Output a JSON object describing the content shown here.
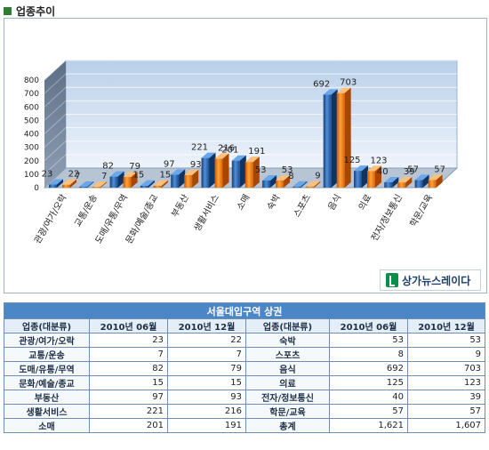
{
  "section_title": "업종추이",
  "logo_text": "상가뉴스레이다",
  "chart_data": {
    "type": "bar",
    "title": "",
    "xlabel": "",
    "ylabel": "",
    "ylim": [
      0,
      800
    ],
    "yticks": [
      0,
      100,
      200,
      300,
      400,
      500,
      600,
      700,
      800
    ],
    "grid": true,
    "legend": "none",
    "categories": [
      "관광/여가/오락",
      "교통/운송",
      "도매/유통/무역",
      "문화/예술/종교",
      "부동산",
      "생활서비스",
      "소매",
      "숙박",
      "스포츠",
      "음식",
      "의료",
      "전자/정보통신",
      "학문/교육"
    ],
    "series": [
      {
        "values": [
          23,
          7,
          82,
          15,
          97,
          221,
          201,
          53,
          8,
          692,
          125,
          40,
          57
        ],
        "color": "#1f5fa8"
      },
      {
        "values": [
          22,
          7,
          79,
          15,
          93,
          216,
          191,
          53,
          9,
          703,
          123,
          39,
          57
        ],
        "color": "#f07a10"
      }
    ]
  },
  "table": {
    "caption": "서울대입구역 상권",
    "headers": [
      "업종(대분류)",
      "2010년 06월",
      "2010년 12월",
      "업종(대분류)",
      "2010년 06월",
      "2010년 12월"
    ],
    "rows": [
      [
        "관광/여가/오락",
        "23",
        "22",
        "숙박",
        "53",
        "53"
      ],
      [
        "교통/운송",
        "7",
        "7",
        "스포츠",
        "8",
        "9"
      ],
      [
        "도매/유통/무역",
        "82",
        "79",
        "음식",
        "692",
        "703"
      ],
      [
        "문화/예술/종교",
        "15",
        "15",
        "의료",
        "125",
        "123"
      ],
      [
        "부동산",
        "97",
        "93",
        "전자/정보통신",
        "40",
        "39"
      ],
      [
        "생활서비스",
        "221",
        "216",
        "학문/교육",
        "57",
        "57"
      ],
      [
        "소매",
        "201",
        "191",
        "총계",
        "1,621",
        "1,607"
      ]
    ]
  }
}
